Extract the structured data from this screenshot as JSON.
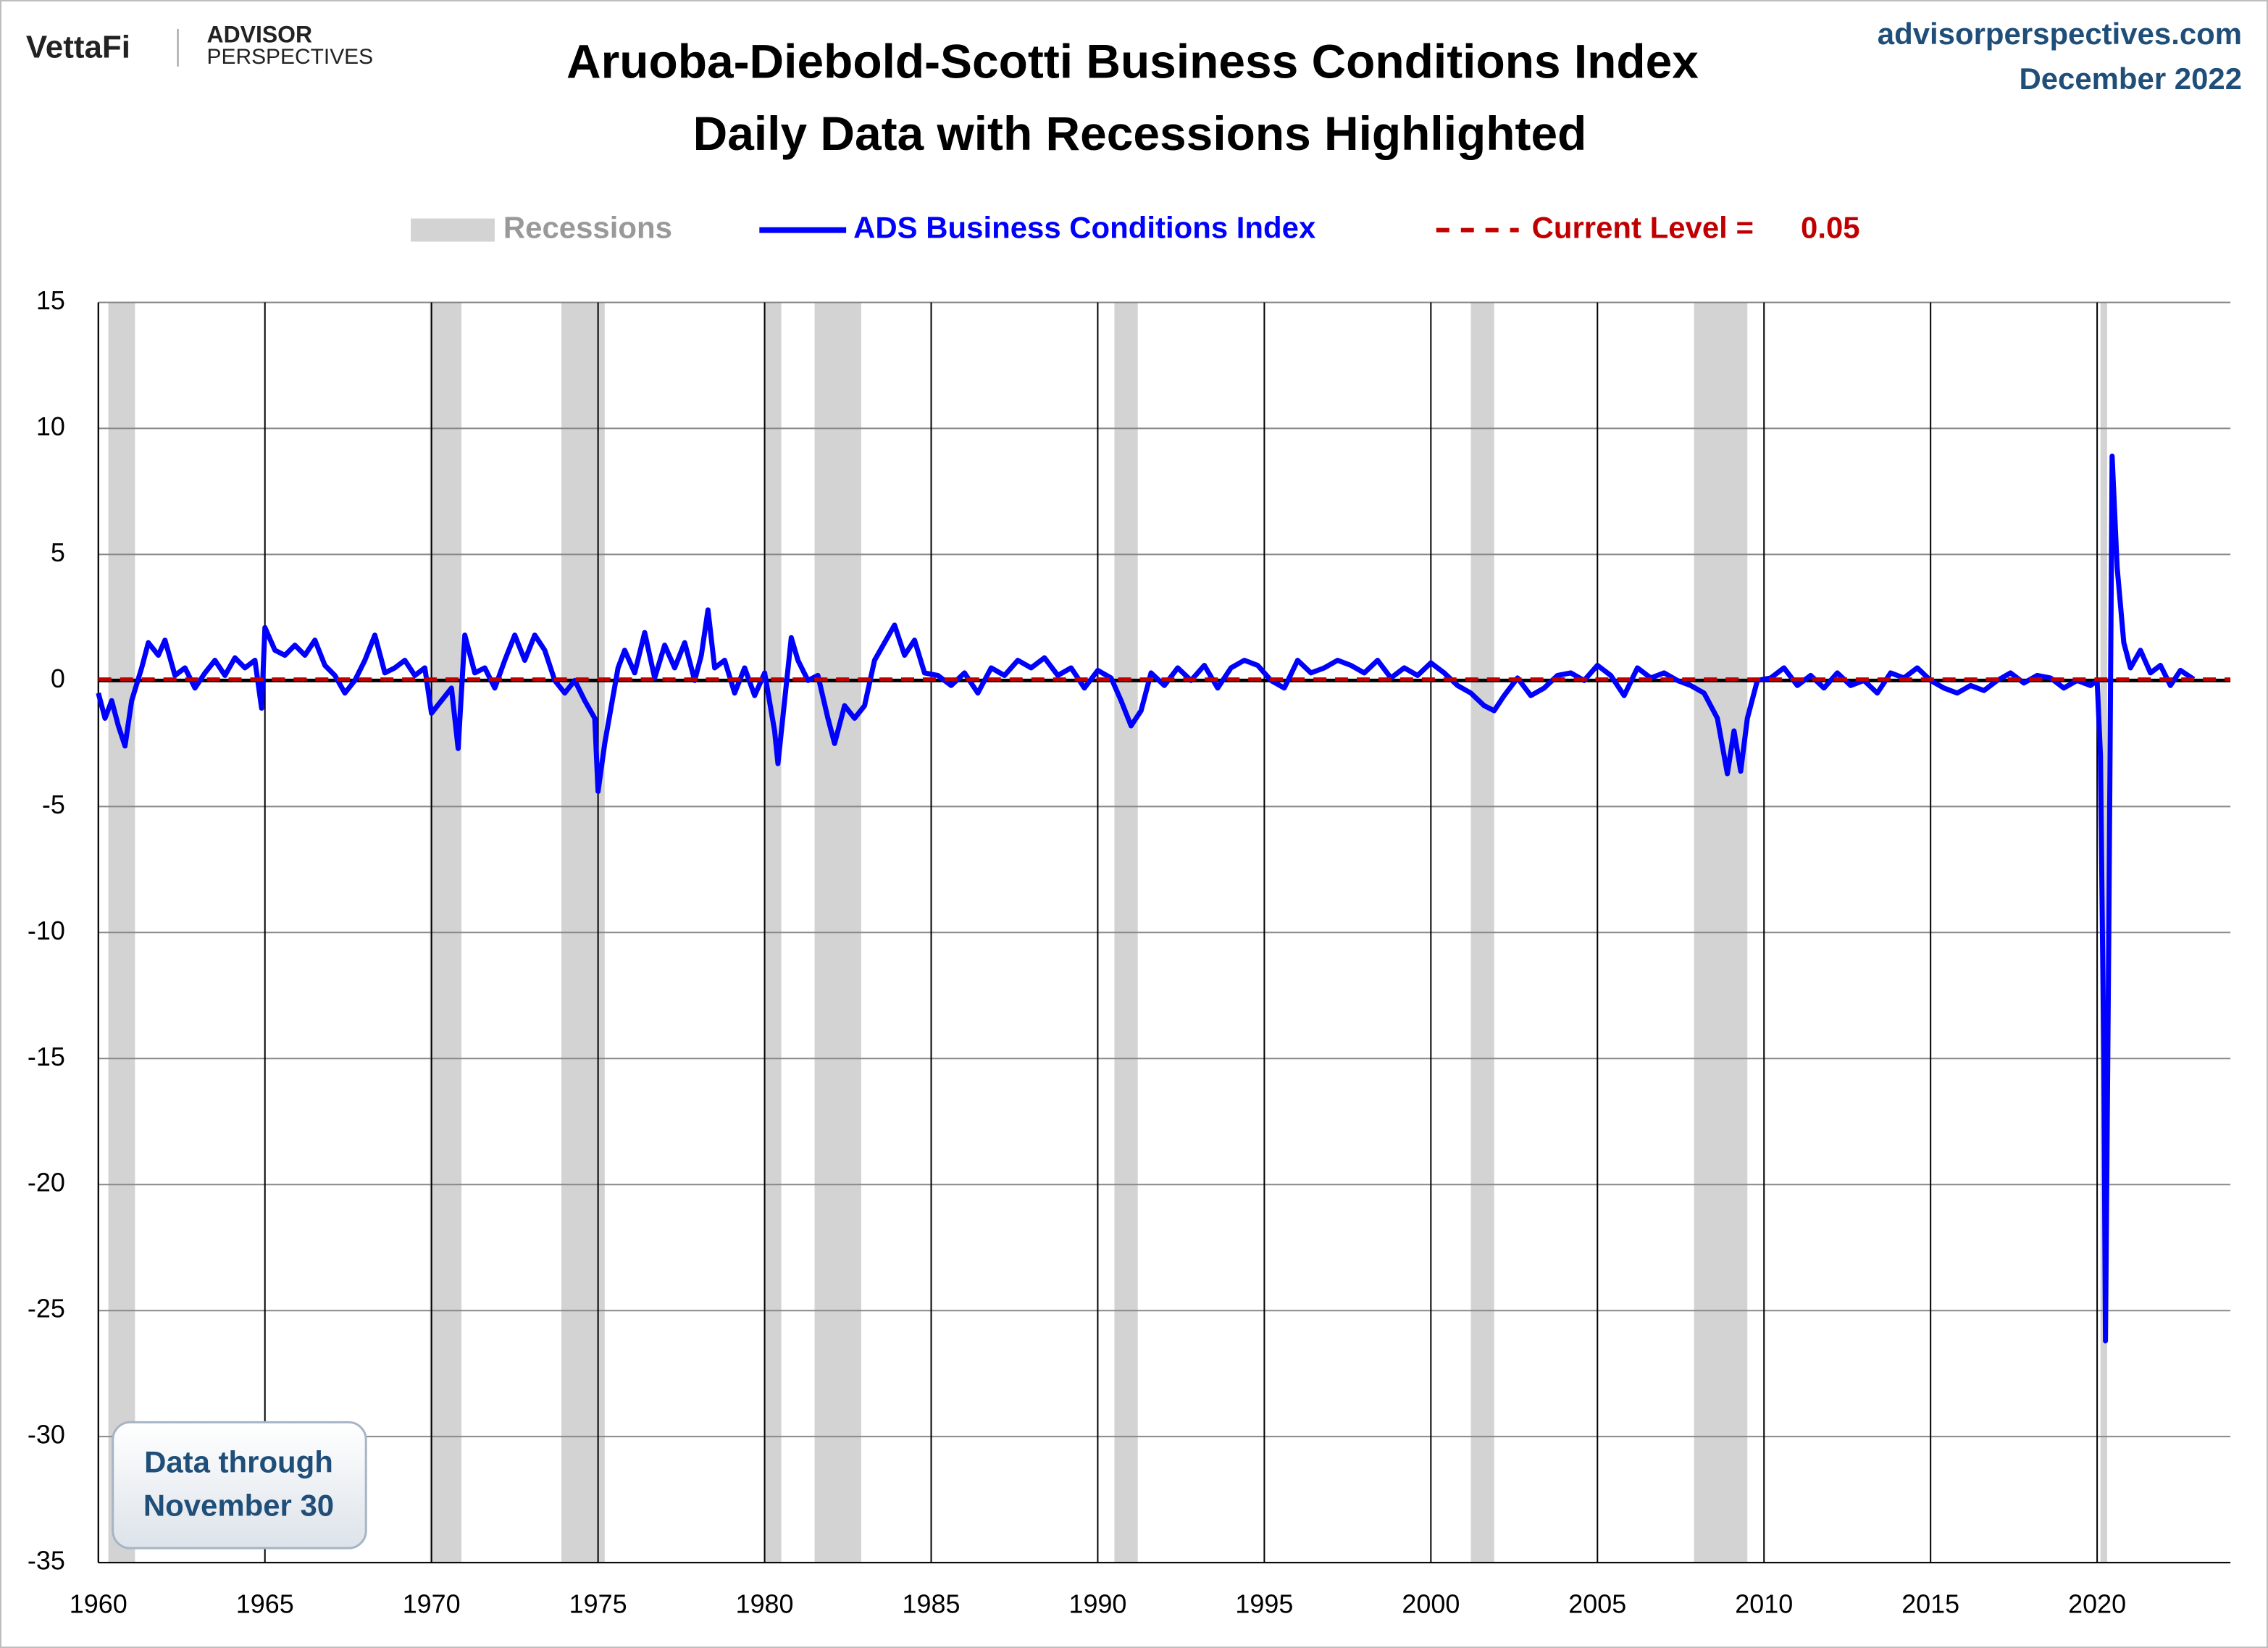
{
  "chart_data": {
    "type": "line",
    "title": "Aruoba-Diebold-Scotti Business Conditions Index",
    "subtitle": "Daily Data with Recessions Highlighted",
    "x": [
      1960.0,
      1960.2,
      1960.4,
      1960.6,
      1960.8,
      1961.0,
      1961.3,
      1961.5,
      1961.8,
      1962.0,
      1962.3,
      1962.6,
      1962.9,
      1963.2,
      1963.5,
      1963.8,
      1964.1,
      1964.4,
      1964.7,
      1964.9,
      1965.0,
      1965.3,
      1965.6,
      1965.9,
      1966.2,
      1966.5,
      1966.8,
      1967.1,
      1967.4,
      1967.7,
      1968.0,
      1968.3,
      1968.6,
      1968.9,
      1969.2,
      1969.5,
      1969.8,
      1970.0,
      1970.3,
      1970.6,
      1970.8,
      1971.0,
      1971.3,
      1971.6,
      1971.9,
      1972.2,
      1972.5,
      1972.8,
      1973.1,
      1973.4,
      1973.7,
      1974.0,
      1974.3,
      1974.6,
      1974.9,
      1975.0,
      1975.2,
      1975.4,
      1975.6,
      1975.8,
      1976.1,
      1976.4,
      1976.7,
      1977.0,
      1977.3,
      1977.6,
      1977.9,
      1978.1,
      1978.3,
      1978.5,
      1978.8,
      1979.1,
      1979.4,
      1979.7,
      1980.0,
      1980.3,
      1980.4,
      1980.6,
      1980.8,
      1981.0,
      1981.3,
      1981.6,
      1981.9,
      1982.1,
      1982.4,
      1982.7,
      1983.0,
      1983.3,
      1983.6,
      1983.9,
      1984.2,
      1984.5,
      1984.8,
      1985.2,
      1985.6,
      1986.0,
      1986.4,
      1986.8,
      1987.2,
      1987.6,
      1988.0,
      1988.4,
      1988.8,
      1989.2,
      1989.6,
      1990.0,
      1990.4,
      1990.7,
      1991.0,
      1991.3,
      1991.6,
      1992.0,
      1992.4,
      1992.8,
      1993.2,
      1993.6,
      1994.0,
      1994.4,
      1994.8,
      1995.2,
      1995.6,
      1996.0,
      1996.4,
      1996.8,
      1997.2,
      1997.6,
      1998.0,
      1998.4,
      1998.8,
      1999.2,
      1999.6,
      2000.0,
      2000.4,
      2000.8,
      2001.2,
      2001.6,
      2001.9,
      2002.2,
      2002.6,
      2003.0,
      2003.4,
      2003.8,
      2004.2,
      2004.6,
      2005.0,
      2005.4,
      2005.8,
      2006.2,
      2006.6,
      2007.0,
      2007.4,
      2007.8,
      2008.2,
      2008.6,
      2008.9,
      2009.1,
      2009.3,
      2009.5,
      2009.8,
      2010.2,
      2010.6,
      2011.0,
      2011.4,
      2011.8,
      2012.2,
      2012.6,
      2013.0,
      2013.4,
      2013.8,
      2014.2,
      2014.6,
      2015.0,
      2015.4,
      2015.8,
      2016.2,
      2016.6,
      2017.0,
      2017.4,
      2017.8,
      2018.2,
      2018.6,
      2019.0,
      2019.4,
      2019.8,
      2020.0,
      2020.1,
      2020.2,
      2020.25,
      2020.35,
      2020.45,
      2020.6,
      2020.8,
      2021.0,
      2021.3,
      2021.6,
      2021.9,
      2022.2,
      2022.5,
      2022.9
    ],
    "series": [
      {
        "name": "ADS Business Conditions Index",
        "color": "#0000ff",
        "values": [
          -0.5,
          -1.5,
          -0.8,
          -1.8,
          -2.6,
          -0.8,
          0.5,
          1.5,
          1.0,
          1.6,
          0.2,
          0.5,
          -0.3,
          0.3,
          0.8,
          0.2,
          0.9,
          0.5,
          0.8,
          -1.1,
          2.1,
          1.2,
          1.0,
          1.4,
          1.0,
          1.6,
          0.6,
          0.2,
          -0.5,
          0.0,
          0.8,
          1.8,
          0.3,
          0.5,
          0.8,
          0.2,
          0.5,
          -1.3,
          -0.8,
          -0.3,
          -2.7,
          1.8,
          0.3,
          0.5,
          -0.3,
          0.8,
          1.8,
          0.8,
          1.8,
          1.2,
          0.0,
          -0.5,
          0.0,
          -0.8,
          -1.5,
          -4.4,
          -2.5,
          -1.0,
          0.5,
          1.2,
          0.3,
          1.9,
          0.1,
          1.4,
          0.5,
          1.5,
          0.0,
          1.0,
          2.8,
          0.5,
          0.8,
          -0.5,
          0.5,
          -0.6,
          0.3,
          -2.0,
          -3.3,
          -0.8,
          1.7,
          0.8,
          0.0,
          0.2,
          -1.5,
          -2.5,
          -1.0,
          -1.5,
          -1.0,
          0.8,
          1.5,
          2.2,
          1.0,
          1.6,
          0.3,
          0.2,
          -0.2,
          0.3,
          -0.5,
          0.5,
          0.2,
          0.8,
          0.5,
          0.9,
          0.2,
          0.5,
          -0.3,
          0.4,
          0.1,
          -0.8,
          -1.8,
          -1.2,
          0.3,
          -0.2,
          0.5,
          0.0,
          0.6,
          -0.3,
          0.5,
          0.8,
          0.6,
          0.0,
          -0.3,
          0.8,
          0.3,
          0.5,
          0.8,
          0.6,
          0.3,
          0.8,
          0.1,
          0.5,
          0.2,
          0.7,
          0.3,
          -0.2,
          -0.5,
          -1.0,
          -1.2,
          -0.6,
          0.1,
          -0.6,
          -0.3,
          0.2,
          0.3,
          0.0,
          0.6,
          0.2,
          -0.6,
          0.5,
          0.1,
          0.3,
          0.0,
          -0.2,
          -0.5,
          -1.5,
          -3.7,
          -2.0,
          -3.6,
          -1.5,
          0.0,
          0.1,
          0.5,
          -0.2,
          0.2,
          -0.3,
          0.3,
          -0.2,
          0.0,
          -0.5,
          0.3,
          0.1,
          0.5,
          0.0,
          -0.3,
          -0.5,
          -0.2,
          -0.4,
          0.0,
          0.3,
          -0.1,
          0.2,
          0.1,
          -0.3,
          0.0,
          -0.2,
          0.0,
          -3.0,
          -15.0,
          -26.2,
          -10.0,
          8.9,
          4.5,
          1.5,
          0.5,
          1.2,
          0.3,
          0.6,
          -0.2,
          0.4,
          0.05
        ]
      }
    ],
    "current_level": {
      "label": "Current Level =",
      "value": 0.05,
      "color": "#c00000"
    },
    "recessions": {
      "label": "Recessions",
      "color": "#d3d3d3",
      "periods": [
        [
          1960.3,
          1961.1
        ],
        [
          1969.95,
          1970.9
        ],
        [
          1973.9,
          1975.2
        ],
        [
          1980.0,
          1980.5
        ],
        [
          1981.5,
          1982.9
        ],
        [
          1990.5,
          1991.2
        ],
        [
          2001.2,
          2001.9
        ],
        [
          2007.9,
          2009.5
        ],
        [
          2020.1,
          2020.3
        ]
      ]
    },
    "xlim": [
      1960,
      2024
    ],
    "xticks": [
      1960,
      1965,
      1970,
      1975,
      1980,
      1985,
      1990,
      1995,
      2000,
      2005,
      2010,
      2015,
      2020
    ],
    "ylim": [
      -35,
      15
    ],
    "yticks": [
      15,
      10,
      5,
      0,
      -5,
      -10,
      -15,
      -20,
      -25,
      -30,
      -35
    ],
    "grid": true
  },
  "branding": {
    "logo": "VettaFi",
    "brand_top": "ADVISOR",
    "brand_bottom": "PERSPECTIVES",
    "site": "advisorperspectives.com",
    "date": "December 2022"
  },
  "note": {
    "line1": "Data through",
    "line2": "November 30"
  }
}
